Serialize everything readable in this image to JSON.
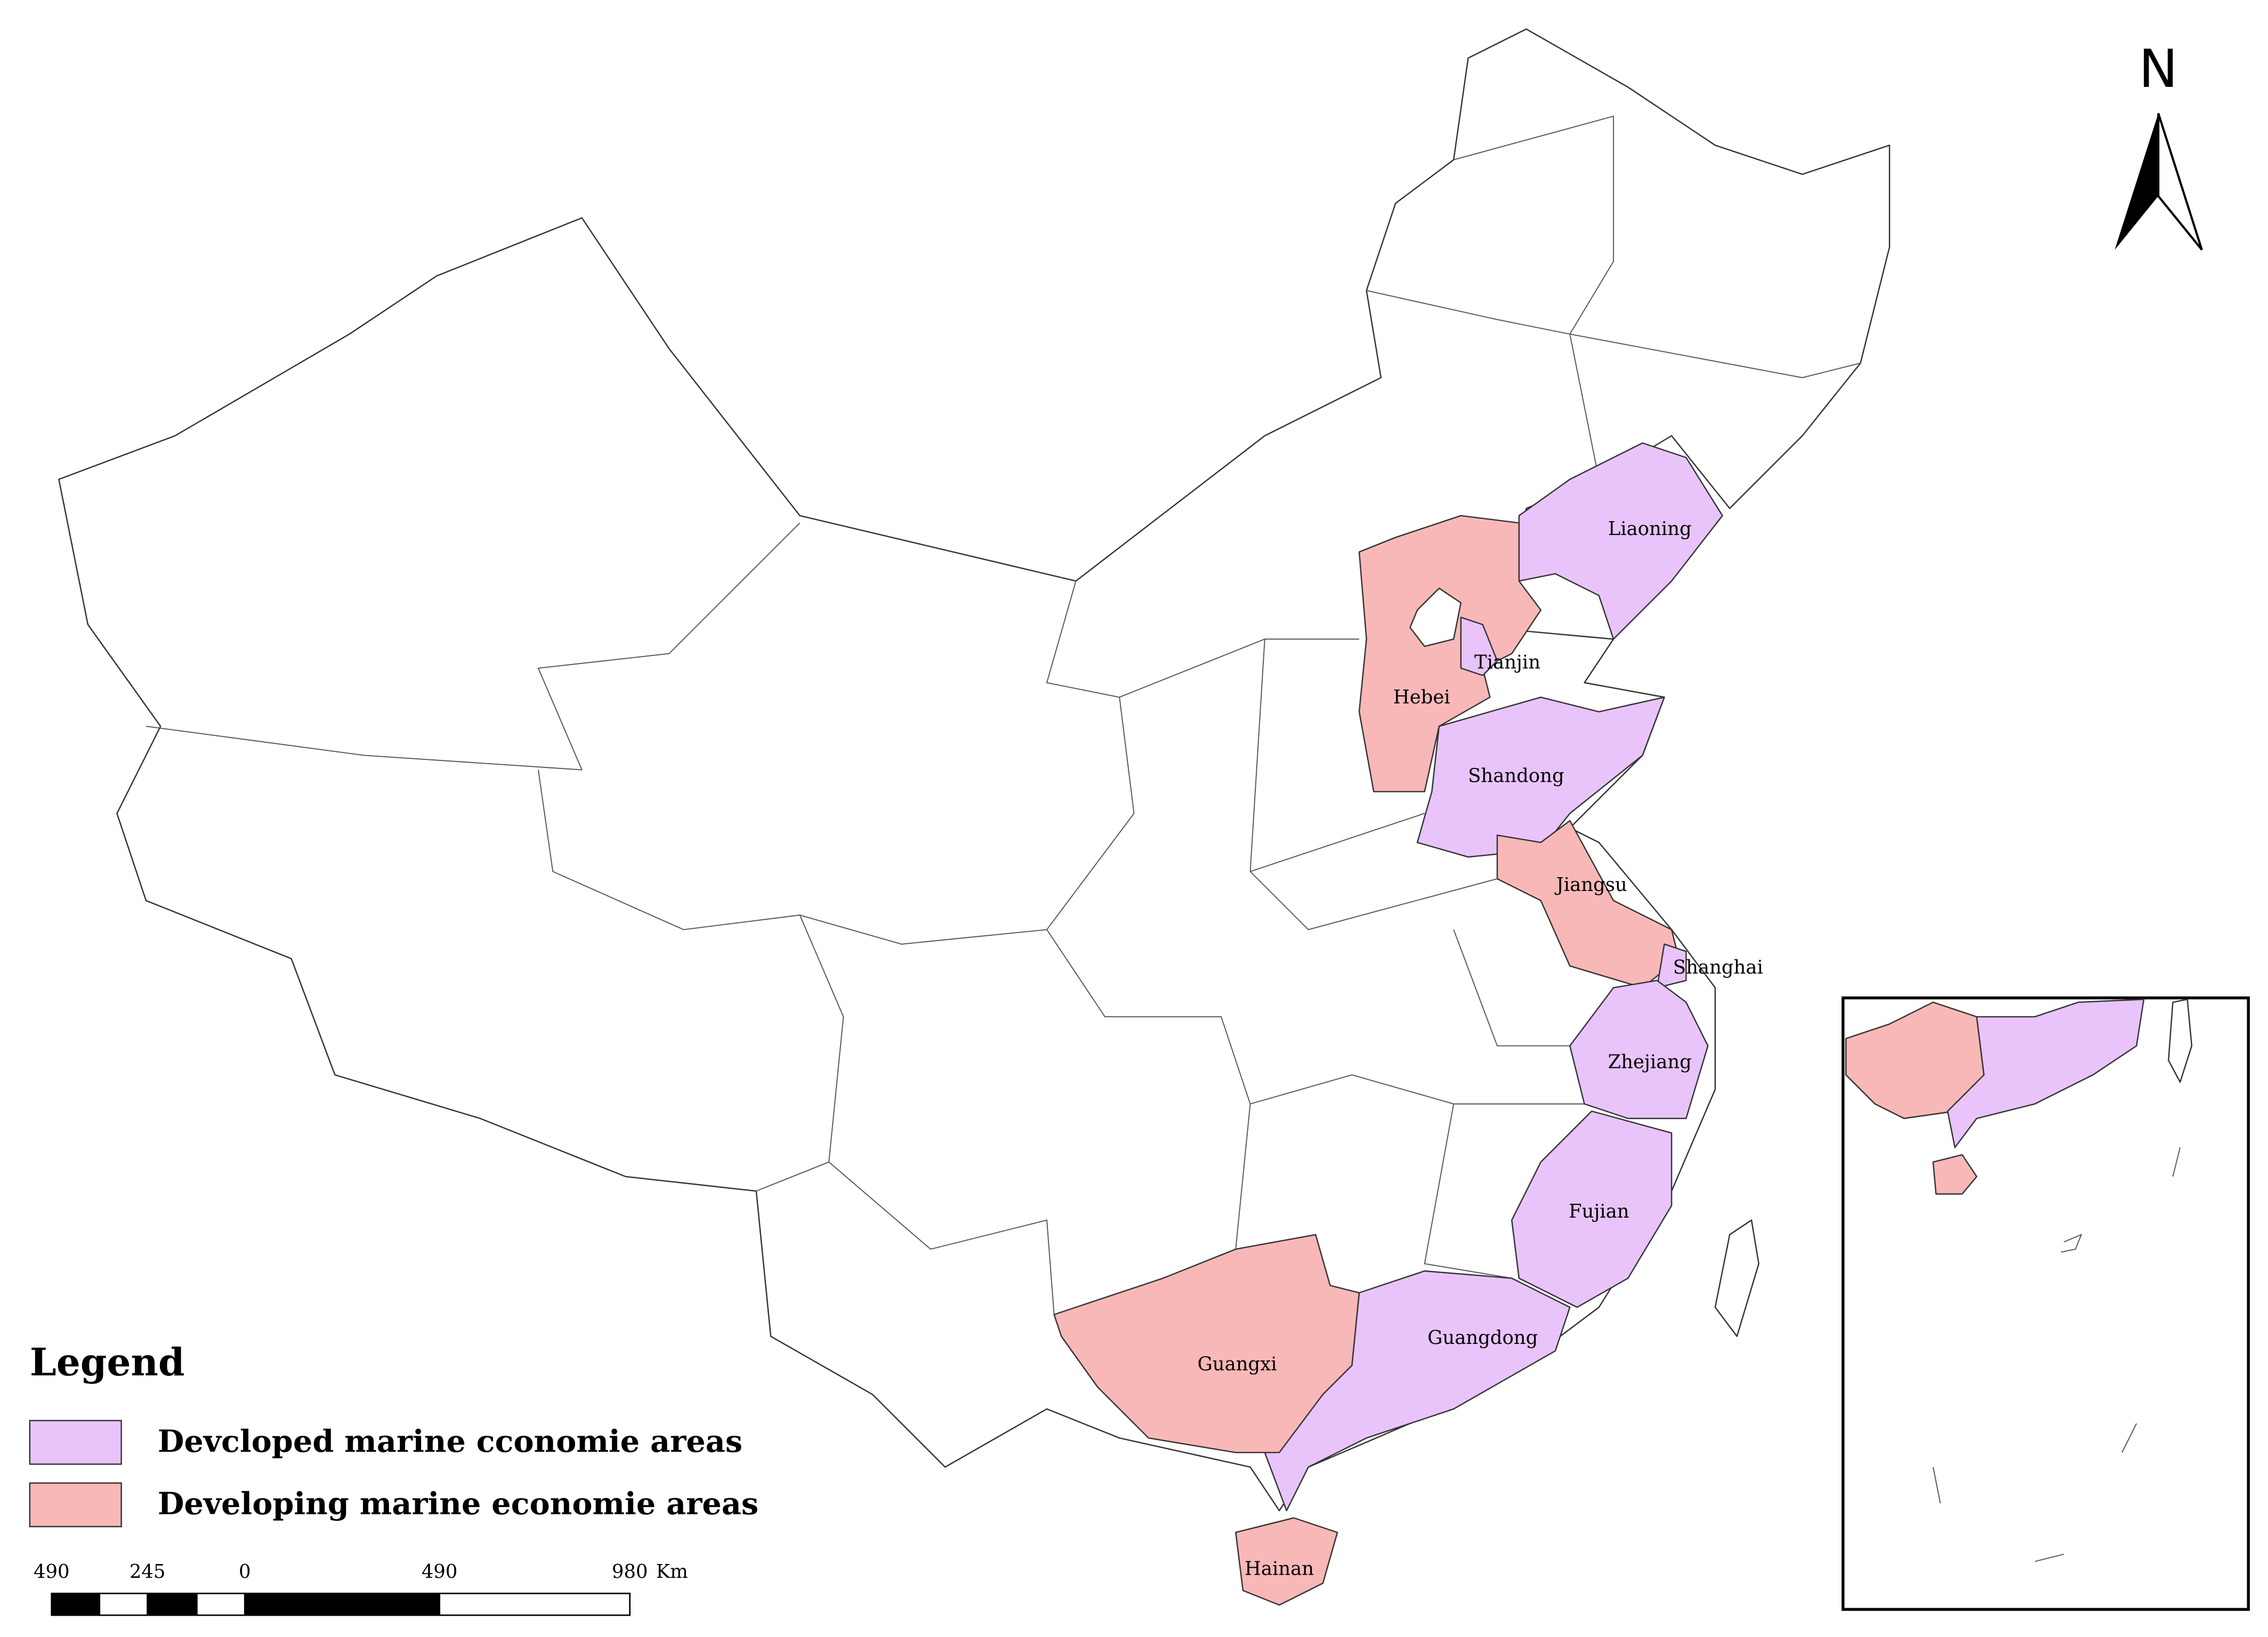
{
  "legend": {
    "title": "Legend",
    "items": [
      {
        "label": "Devcloped marine cconomie areas",
        "color": "#e8c4fb"
      },
      {
        "label": "Developing marine economie areas",
        "color": "#f9b8b8"
      }
    ]
  },
  "provinces": [
    {
      "name": "Liaoning",
      "category": 0
    },
    {
      "name": "Tianjin",
      "category": 0
    },
    {
      "name": "Hebei",
      "category": 1
    },
    {
      "name": "Shandong",
      "category": 0
    },
    {
      "name": "Jiangsu",
      "category": 1
    },
    {
      "name": "Shanghai",
      "category": 0
    },
    {
      "name": "Zhejiang",
      "category": 0
    },
    {
      "name": "Fujian",
      "category": 0
    },
    {
      "name": "Guangdong",
      "category": 0
    },
    {
      "name": "Guangxi",
      "category": 1
    },
    {
      "name": "Hainan",
      "category": 1
    }
  ],
  "north": "N",
  "scale_bar": {
    "labels": [
      "490",
      "245",
      "0",
      "490",
      "980"
    ],
    "unit": "Km"
  }
}
